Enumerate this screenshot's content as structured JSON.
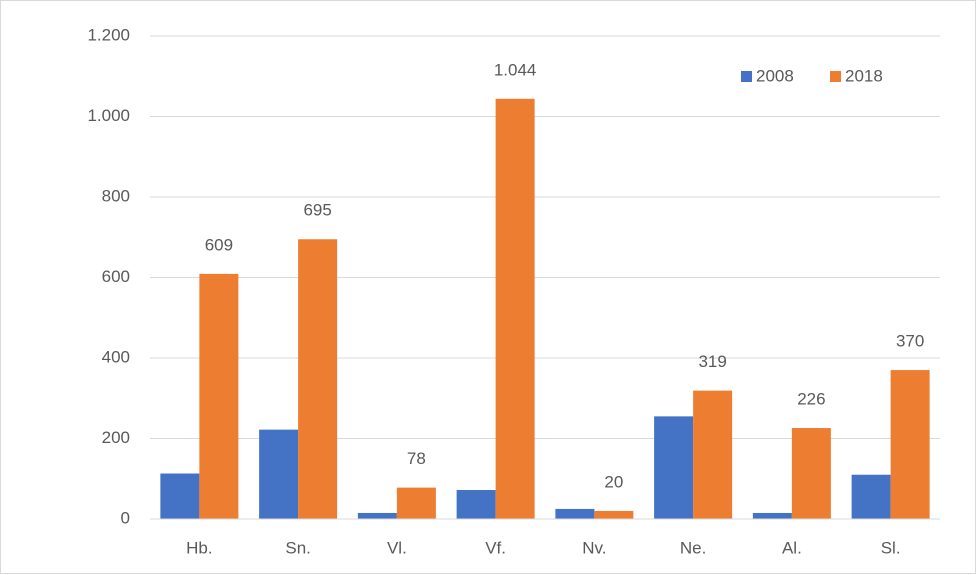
{
  "chart_data": {
    "type": "bar",
    "categories": [
      "Hb.",
      "Sn.",
      "Vl.",
      "Vf.",
      "Nv.",
      "Ne.",
      "Al.",
      "Sl."
    ],
    "series": [
      {
        "name": "2008",
        "color": "#4472c4",
        "values": [
          113,
          222,
          15,
          72,
          25,
          255,
          15,
          110
        ]
      },
      {
        "name": "2018",
        "color": "#ed7d31",
        "values": [
          609,
          695,
          78,
          1044,
          20,
          319,
          226,
          370
        ],
        "value_labels": [
          "609",
          "695",
          "78",
          "1.044",
          "20",
          "319",
          "226",
          "370"
        ]
      }
    ],
    "ylim": [
      0,
      1200
    ],
    "yticks": [
      0,
      200,
      400,
      600,
      800,
      {
        "value": 1000,
        "label": "1.000"
      },
      {
        "value": 1200,
        "label": "1.200"
      }
    ],
    "grid": true,
    "legend": "top-right"
  }
}
